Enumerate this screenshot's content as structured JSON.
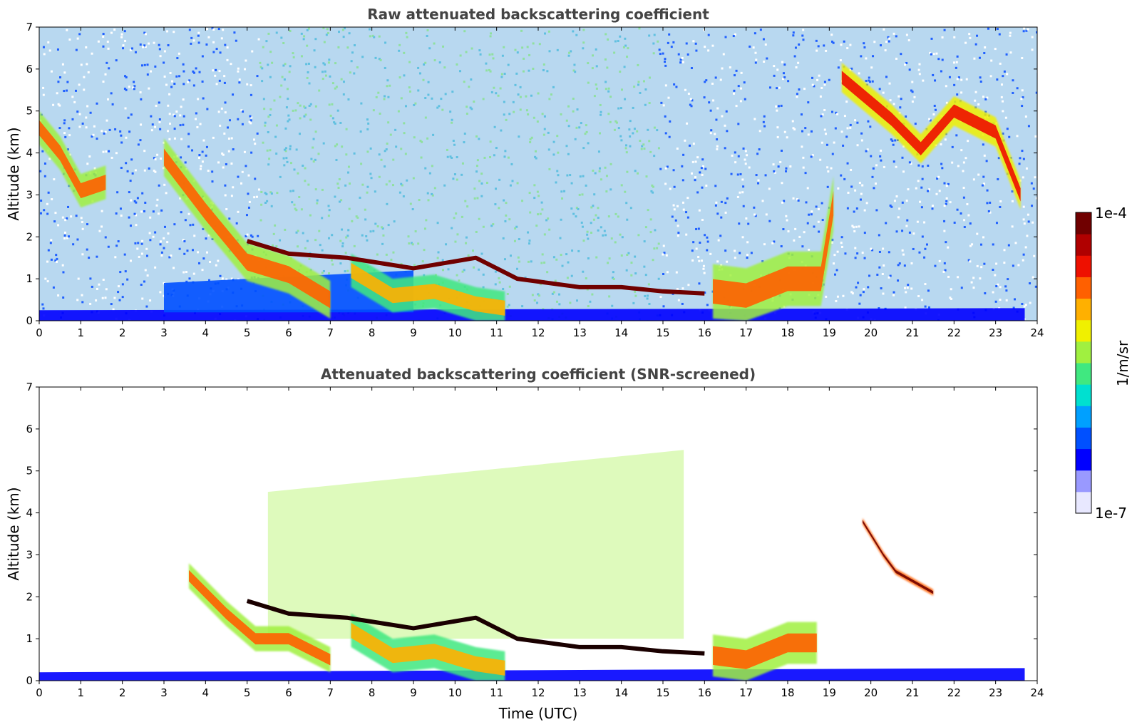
{
  "chart_data": [
    {
      "type": "heatmap",
      "title": "Raw attenuated backscattering coefficient",
      "xlabel": "",
      "ylabel": "Altitude (km)",
      "xlim": [
        0,
        24
      ],
      "ylim": [
        0,
        7
      ],
      "xticks": [
        0,
        1,
        2,
        3,
        4,
        5,
        6,
        7,
        8,
        9,
        10,
        11,
        12,
        13,
        14,
        15,
        16,
        17,
        18,
        19,
        20,
        21,
        22,
        23,
        24
      ],
      "yticks": [
        0,
        1,
        2,
        3,
        4,
        5,
        6,
        7
      ],
      "layers": [
        {
          "name": "surface-layer",
          "kind": "band",
          "x": [
            0,
            23.7
          ],
          "base_km": 0,
          "top_km": [
            0.25,
            0.3
          ],
          "level": 0.15
        },
        {
          "name": "blue-haze",
          "kind": "band",
          "x": [
            3,
            9
          ],
          "base_km": 0.2,
          "top_km": [
            0.9,
            1.2
          ],
          "level": 0.2
        },
        {
          "name": "morning-cloud-descending",
          "kind": "ribbon",
          "points": [
            [
              3,
              3.9
            ],
            [
              4,
              2.6
            ],
            [
              5,
              1.4
            ],
            [
              6,
              1.1
            ],
            [
              7,
              0.5
            ]
          ],
          "thickness_km": 0.9,
          "level": 0.75
        },
        {
          "name": "early-cloud-high",
          "kind": "ribbon",
          "points": [
            [
              0,
              4.6
            ],
            [
              0.5,
              4.0
            ],
            [
              1,
              3.1
            ],
            [
              1.6,
              3.3
            ]
          ],
          "thickness_km": 0.8,
          "level": 0.8
        },
        {
          "name": "midday-plumes",
          "kind": "ribbon",
          "points": [
            [
              7.5,
              1.2
            ],
            [
              8.5,
              0.6
            ],
            [
              9.5,
              0.7
            ],
            [
              10.5,
              0.4
            ],
            [
              11.2,
              0.3
            ]
          ],
          "thickness_km": 0.8,
          "level": 0.72
        },
        {
          "name": "boundary-layer-top",
          "kind": "line",
          "points": [
            [
              5,
              1.9
            ],
            [
              6,
              1.6
            ],
            [
              7.4,
              1.5
            ],
            [
              9,
              1.25
            ],
            [
              10.5,
              1.5
            ],
            [
              11.5,
              1.0
            ],
            [
              13,
              0.8
            ],
            [
              14,
              0.8
            ],
            [
              15,
              0.7
            ],
            [
              16,
              0.65
            ]
          ],
          "level": 0.97
        },
        {
          "name": "afternoon-convection",
          "kind": "ribbon",
          "points": [
            [
              16.2,
              0.7
            ],
            [
              17,
              0.6
            ],
            [
              18,
              1.0
            ],
            [
              18.8,
              1.0
            ],
            [
              19.1,
              2.8
            ]
          ],
          "thickness_km": 1.3,
          "level": 0.8
        },
        {
          "name": "evening-high-cloud",
          "kind": "ribbon",
          "points": [
            [
              19.3,
              5.8
            ],
            [
              20.5,
              4.8
            ],
            [
              21.2,
              4.1
            ],
            [
              22,
              5.0
            ],
            [
              23,
              4.5
            ],
            [
              23.6,
              3.0
            ]
          ],
          "thickness_km": 0.7,
          "level": 0.85
        }
      ]
    },
    {
      "type": "heatmap",
      "title": "Attenuated backscattering coefficient (SNR-screened)",
      "xlabel": "Time (UTC)",
      "ylabel": "Altitude (km)",
      "xlim": [
        0,
        24
      ],
      "ylim": [
        0,
        7
      ],
      "xticks": [
        0,
        1,
        2,
        3,
        4,
        5,
        6,
        7,
        8,
        9,
        10,
        11,
        12,
        13,
        14,
        15,
        16,
        17,
        18,
        19,
        20,
        21,
        22,
        23,
        24
      ],
      "yticks": [
        0,
        1,
        2,
        3,
        4,
        5,
        6,
        7
      ],
      "layers": [
        {
          "name": "surface-layer",
          "kind": "band",
          "x": [
            0,
            23.7
          ],
          "base_km": 0,
          "top_km": [
            0.2,
            0.3
          ],
          "level": 0.15
        },
        {
          "name": "daytime-speckle",
          "kind": "band",
          "x": [
            5.5,
            15.5
          ],
          "base_km": 1.0,
          "top_km": [
            4.5,
            5.5
          ],
          "level": 0.55
        },
        {
          "name": "morning-cloud-descending",
          "kind": "ribbon",
          "points": [
            [
              3.6,
              2.5
            ],
            [
              4.5,
              1.6
            ],
            [
              5.2,
              1.0
            ],
            [
              6,
              1.0
            ],
            [
              7,
              0.5
            ]
          ],
          "thickness_km": 0.6,
          "level": 0.75
        },
        {
          "name": "midday-plumes",
          "kind": "ribbon",
          "points": [
            [
              7.5,
              1.2
            ],
            [
              8.5,
              0.6
            ],
            [
              9.5,
              0.7
            ],
            [
              10.5,
              0.4
            ],
            [
              11.2,
              0.3
            ]
          ],
          "thickness_km": 0.8,
          "level": 0.72
        },
        {
          "name": "boundary-layer-top",
          "kind": "line",
          "points": [
            [
              5,
              1.9
            ],
            [
              6,
              1.6
            ],
            [
              7.4,
              1.5
            ],
            [
              9,
              1.25
            ],
            [
              10.5,
              1.5
            ],
            [
              11.5,
              1.0
            ],
            [
              13,
              0.8
            ],
            [
              14,
              0.8
            ],
            [
              15,
              0.7
            ],
            [
              16,
              0.65
            ]
          ],
          "level": 1.0
        },
        {
          "name": "afternoon-convection",
          "kind": "ribbon",
          "points": [
            [
              16.2,
              0.6
            ],
            [
              17,
              0.5
            ],
            [
              18,
              0.9
            ],
            [
              18.7,
              0.9
            ]
          ],
          "thickness_km": 1.0,
          "level": 0.8
        },
        {
          "name": "evening-high-cloud",
          "kind": "ribbon",
          "points": [
            [
              19.8,
              3.8
            ],
            [
              20.3,
              3.0
            ],
            [
              20.6,
              2.6
            ],
            [
              21.5,
              2.1
            ]
          ],
          "thickness_km": 0.15,
          "level": 1.0
        }
      ]
    }
  ],
  "colorbar": {
    "label": "1/m/sr",
    "max_label": "1e-4",
    "min_label": "1e-7",
    "colors": [
      "#e8e8ff",
      "#9999ff",
      "#0000ff",
      "#0050ff",
      "#00a0ff",
      "#00e0d0",
      "#40e880",
      "#a0f040",
      "#f0f000",
      "#ffb000",
      "#ff6000",
      "#ee1000",
      "#b00000",
      "#700000"
    ]
  }
}
